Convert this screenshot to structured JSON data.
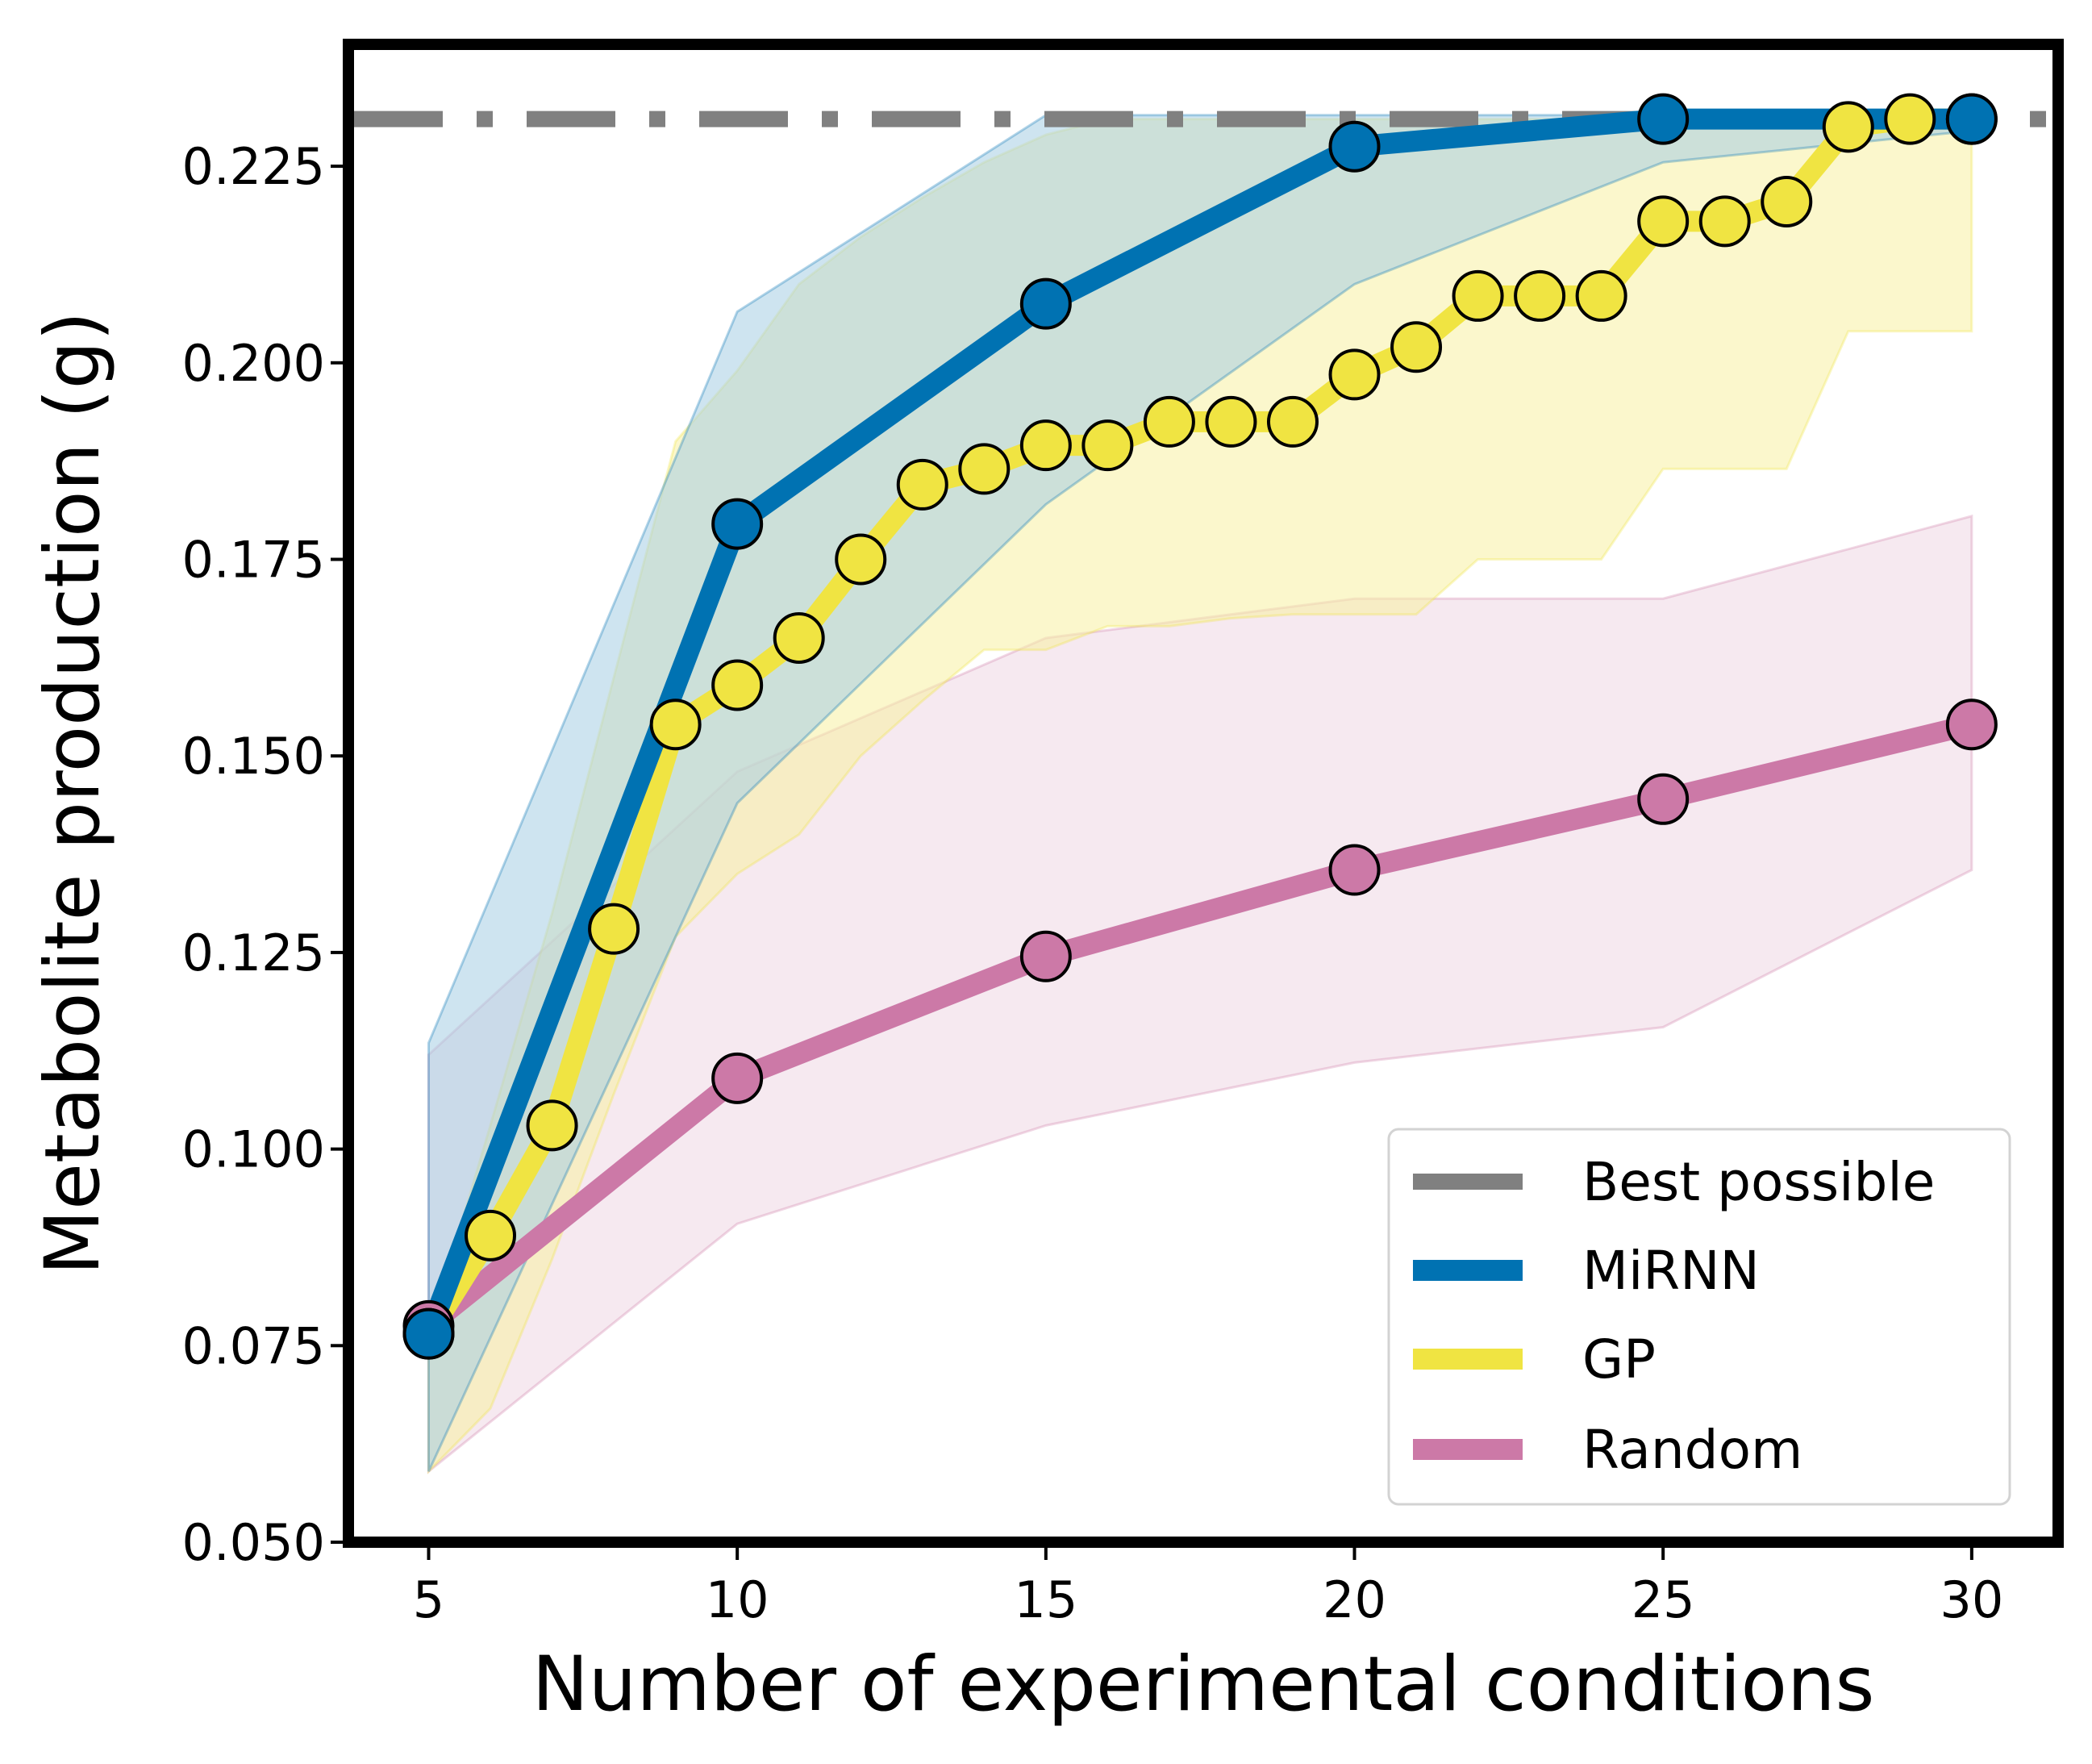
{
  "chart_data": {
    "type": "line",
    "title": "",
    "xlabel": "Number of experimental conditions",
    "ylabel": "Metabolite production (g)",
    "xlim": [
      3.7,
      31.4
    ],
    "ylim": [
      0.05,
      0.2405
    ],
    "xticks": [
      "5",
      "10",
      "15",
      "20",
      "25",
      "30"
    ],
    "yticks": [
      "0.050",
      "0.075",
      "0.100",
      "0.125",
      "0.150",
      "0.175",
      "0.200",
      "0.225"
    ],
    "grid": false,
    "legend_position": "bottom-right",
    "best_possible": 0.231,
    "series": [
      {
        "name": "Best possible",
        "color": "#808080",
        "style": "dash-dot"
      },
      {
        "name": "MiRNN",
        "color": "#0072b2",
        "band_color": "#a6cde4",
        "x": [
          5,
          10,
          15,
          20,
          25,
          30
        ],
        "y": [
          0.0765,
          0.1795,
          0.2075,
          0.2275,
          0.231,
          0.231
        ],
        "lower": [
          0.059,
          0.144,
          0.182,
          0.21,
          0.2255,
          0.2295
        ],
        "upper": [
          0.1135,
          0.2065,
          0.2315,
          0.2315,
          0.2315,
          0.2315
        ]
      },
      {
        "name": "GP",
        "color": "#f0e442",
        "band_color": "#f7f0a2",
        "x": [
          5,
          6,
          7,
          8,
          9,
          10,
          11,
          12,
          13,
          14,
          15,
          16,
          17,
          18,
          19,
          20,
          21,
          22,
          23,
          24,
          25,
          26,
          27,
          28,
          29,
          30
        ],
        "y": [
          0.0765,
          0.089,
          0.103,
          0.128,
          0.154,
          0.159,
          0.165,
          0.175,
          0.1845,
          0.1865,
          0.1895,
          0.1895,
          0.1925,
          0.1925,
          0.1925,
          0.1985,
          0.202,
          0.2085,
          0.2085,
          0.2085,
          0.218,
          0.218,
          0.2205,
          0.23,
          0.231,
          0.231
        ],
        "lower": [
          0.059,
          0.067,
          0.086,
          0.107,
          0.127,
          0.135,
          0.14,
          0.15,
          0.157,
          0.1635,
          0.1635,
          0.1665,
          0.1665,
          0.1675,
          0.168,
          0.168,
          0.168,
          0.175,
          0.175,
          0.175,
          0.1865,
          0.1865,
          0.1865,
          0.204,
          0.204,
          0.204
        ],
        "upper": [
          0.0765,
          0.103,
          0.13,
          0.16,
          0.19,
          0.199,
          0.21,
          0.216,
          0.221,
          0.2255,
          0.229,
          0.231,
          0.231,
          0.231,
          0.231,
          0.231,
          0.231,
          0.231,
          0.231,
          0.231,
          0.231,
          0.231,
          0.231,
          0.231,
          0.231,
          0.231
        ]
      },
      {
        "name": "Random",
        "color": "#cc79a7",
        "band_color": "#efd7e4",
        "x": [
          5,
          10,
          15,
          20,
          25,
          30
        ],
        "y": [
          0.0775,
          0.109,
          0.1245,
          0.1355,
          0.1445,
          0.154
        ],
        "lower": [
          0.059,
          0.0905,
          0.103,
          0.111,
          0.1155,
          0.1355
        ],
        "upper": [
          0.112,
          0.148,
          0.165,
          0.17,
          0.17,
          0.1805
        ]
      }
    ]
  }
}
